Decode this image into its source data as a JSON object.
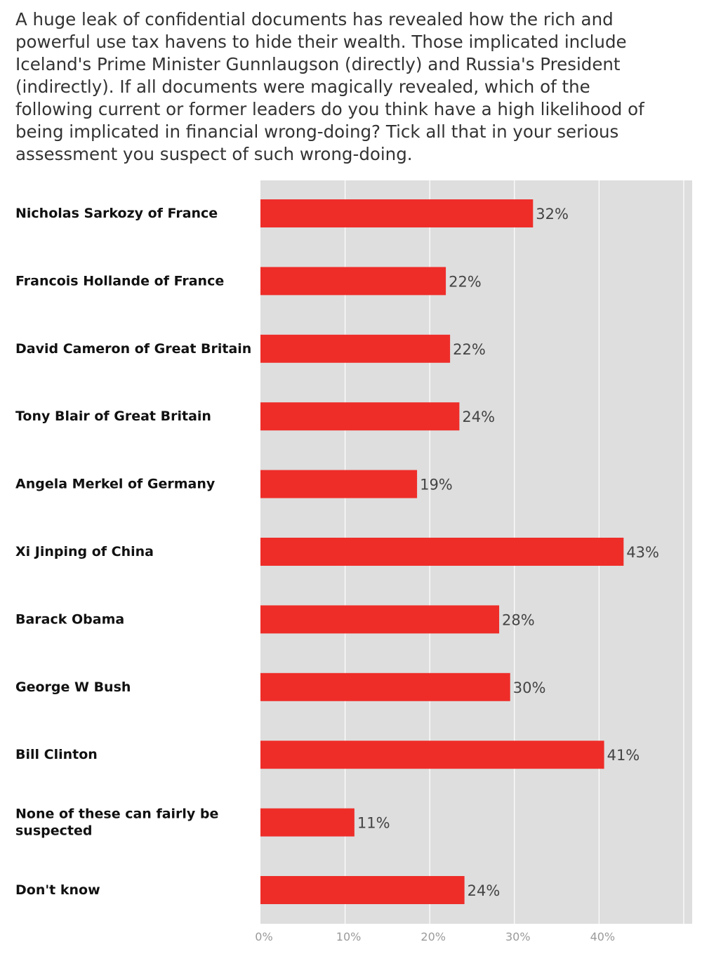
{
  "chart_data": {
    "type": "bar",
    "orientation": "horizontal",
    "title": "A huge leak of confidential documents has revealed how the rich and powerful use tax havens to hide their wealth. Those implicated include Iceland's Prime Minister Gunnlaugson (directly) and Russia's President (indirectly). If all documents were magically revealed, which of the following current or former leaders do you think have a high likelihood of being implicated in financial wrong-doing? Tick all that in your serious assessment you suspect of such wrong-doing.",
    "categories": [
      "Nicholas Sarkozy of France",
      "Francois Hollande of France",
      "David Cameron of Great Britain",
      "Tony Blair of Great Britain",
      "Angela Merkel of Germany",
      "Xi Jinping of China",
      "Barack Obama",
      "George W Bush",
      "Bill Clinton",
      "None of these can fairly be suspected",
      "Don't know"
    ],
    "values": [
      32.2,
      21.9,
      22.4,
      23.5,
      18.5,
      42.9,
      28.2,
      29.5,
      40.6,
      11.1,
      24.1
    ],
    "value_labels": [
      "32%",
      "22%",
      "22%",
      "24%",
      "19%",
      "43%",
      "28%",
      "30%",
      "41%",
      "11%",
      "24%"
    ],
    "xlim": [
      0,
      51
    ],
    "x_ticks": [
      0,
      10,
      20,
      30,
      40
    ],
    "x_tick_labels": [
      "0%",
      "10%",
      "20%",
      "30%",
      "40%"
    ],
    "grid": true,
    "colors": {
      "bar": "#ee2d29",
      "panel": "#dedede",
      "gridline": "#ffffff"
    }
  }
}
